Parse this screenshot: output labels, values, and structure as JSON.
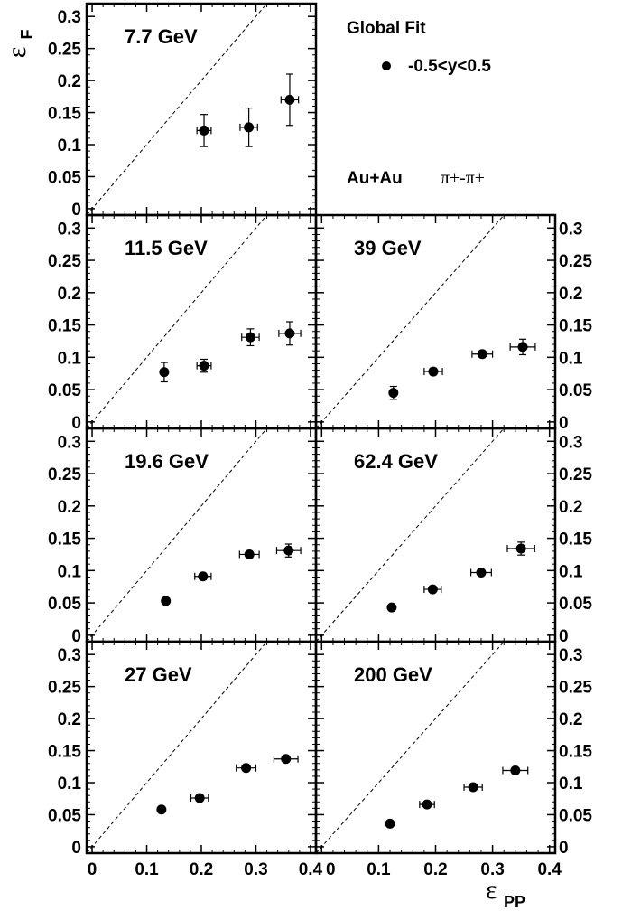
{
  "chart_data": {
    "type": "scatter",
    "xlabel": "ε",
    "xlabel_sub": "PP",
    "ylabel": "ε",
    "ylabel_sub": "F",
    "xlim": [
      -0.01,
      0.41
    ],
    "ylim": [
      -0.01,
      0.32
    ],
    "x_ticks": [
      {
        "value": 0,
        "label": "0"
      },
      {
        "value": 0.1,
        "label": "0.1"
      },
      {
        "value": 0.2,
        "label": "0.2"
      },
      {
        "value": 0.3,
        "label": "0.3"
      },
      {
        "value": 0.4,
        "label": "0.4"
      }
    ],
    "y_ticks": [
      {
        "value": 0,
        "label": "0"
      },
      {
        "value": 0.05,
        "label": "0.05"
      },
      {
        "value": 0.1,
        "label": "0.1"
      },
      {
        "value": 0.15,
        "label": "0.15"
      },
      {
        "value": 0.2,
        "label": "0.2"
      },
      {
        "value": 0.25,
        "label": "0.25"
      },
      {
        "value": 0.3,
        "label": "0.3"
      }
    ],
    "reference_line": "y = x (dashed)",
    "legend": {
      "title": "Global Fit",
      "entry": "-0.5<y<0.5",
      "system": "Au+Au",
      "particles": "π±-π±"
    },
    "panels": [
      {
        "name": "7.7 GeV",
        "points": [
          {
            "x": 0.205,
            "y": 0.122,
            "xerr": 0.013,
            "yerr": 0.025
          },
          {
            "x": 0.287,
            "y": 0.127,
            "xerr": 0.016,
            "yerr": 0.03
          },
          {
            "x": 0.362,
            "y": 0.17,
            "xerr": 0.016,
            "yerr": 0.04
          }
        ]
      },
      {
        "name": "11.5 GeV",
        "points": [
          {
            "x": 0.132,
            "y": 0.077,
            "xerr": 0.0,
            "yerr": 0.015
          },
          {
            "x": 0.205,
            "y": 0.087,
            "xerr": 0.013,
            "yerr": 0.01
          },
          {
            "x": 0.29,
            "y": 0.131,
            "xerr": 0.016,
            "yerr": 0.013
          },
          {
            "x": 0.362,
            "y": 0.137,
            "xerr": 0.02,
            "yerr": 0.018
          }
        ]
      },
      {
        "name": "39 GeV",
        "points": [
          {
            "x": 0.126,
            "y": 0.045,
            "xerr": 0.0,
            "yerr": 0.01
          },
          {
            "x": 0.196,
            "y": 0.078,
            "xerr": 0.016,
            "yerr": 0.005
          },
          {
            "x": 0.282,
            "y": 0.105,
            "xerr": 0.018,
            "yerr": 0.004
          },
          {
            "x": 0.353,
            "y": 0.116,
            "xerr": 0.022,
            "yerr": 0.012
          }
        ]
      },
      {
        "name": "19.6 GeV",
        "points": [
          {
            "x": 0.135,
            "y": 0.053,
            "xerr": 0.0,
            "yerr": 0.0
          },
          {
            "x": 0.203,
            "y": 0.091,
            "xerr": 0.015,
            "yerr": 0.005
          },
          {
            "x": 0.288,
            "y": 0.125,
            "xerr": 0.018,
            "yerr": 0.005
          },
          {
            "x": 0.36,
            "y": 0.131,
            "xerr": 0.022,
            "yerr": 0.01
          }
        ]
      },
      {
        "name": "62.4 GeV",
        "points": [
          {
            "x": 0.123,
            "y": 0.043,
            "xerr": 0.0,
            "yerr": 0.0
          },
          {
            "x": 0.195,
            "y": 0.071,
            "xerr": 0.015,
            "yerr": 0.004
          },
          {
            "x": 0.28,
            "y": 0.097,
            "xerr": 0.018,
            "yerr": 0.004
          },
          {
            "x": 0.35,
            "y": 0.134,
            "xerr": 0.024,
            "yerr": 0.01
          }
        ]
      },
      {
        "name": "27 GeV",
        "points": [
          {
            "x": 0.127,
            "y": 0.058,
            "xerr": 0.0,
            "yerr": 0.0
          },
          {
            "x": 0.197,
            "y": 0.076,
            "xerr": 0.016,
            "yerr": 0.004
          },
          {
            "x": 0.282,
            "y": 0.123,
            "xerr": 0.018,
            "yerr": 0.004
          },
          {
            "x": 0.355,
            "y": 0.137,
            "xerr": 0.022,
            "yerr": 0.004
          }
        ]
      },
      {
        "name": "200 GeV",
        "points": [
          {
            "x": 0.12,
            "y": 0.036,
            "xerr": 0.0,
            "yerr": 0.0
          },
          {
            "x": 0.185,
            "y": 0.066,
            "xerr": 0.013,
            "yerr": 0.004
          },
          {
            "x": 0.266,
            "y": 0.093,
            "xerr": 0.016,
            "yerr": 0.004
          },
          {
            "x": 0.34,
            "y": 0.119,
            "xerr": 0.022,
            "yerr": 0.004
          }
        ]
      }
    ]
  }
}
